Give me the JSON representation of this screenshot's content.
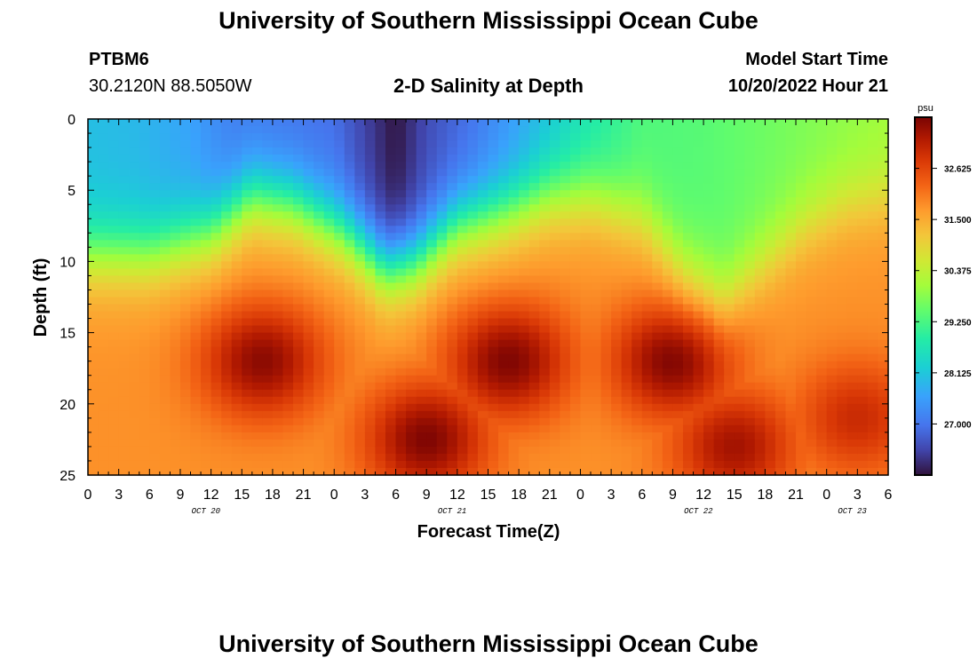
{
  "page": {
    "title": "University of Southern Mississippi Ocean Cube",
    "footer_title": "University of Southern Mississippi Ocean Cube"
  },
  "station": {
    "id": "PTBM6",
    "coords": "30.2120N  88.5050W"
  },
  "plot_title": "2-D Salinity at Depth",
  "model_start": {
    "label": "Model Start Time",
    "value": "10/20/2022 Hour 21"
  },
  "chart_data": {
    "type": "heatmap",
    "title": "2-D Salinity at Depth",
    "xlabel": "Forecast Time(Z)",
    "ylabel": "Depth (ft)",
    "x_tick_labels": [
      "0",
      "3",
      "6",
      "9",
      "12",
      "15",
      "18",
      "21",
      "0",
      "3",
      "6",
      "9",
      "12",
      "15",
      "18",
      "21",
      "0",
      "3",
      "6",
      "9",
      "12",
      "15",
      "18",
      "21",
      "0",
      "3",
      "6"
    ],
    "y_tick_labels": [
      "0",
      "5",
      "10",
      "15",
      "20",
      "25"
    ],
    "ylim": [
      0,
      25
    ],
    "xlim_hours": [
      0,
      78
    ],
    "day_labels": [
      {
        "label": "OCT 20",
        "hour": 11.5
      },
      {
        "label": "OCT 21",
        "hour": 35.5
      },
      {
        "label": "OCT 22",
        "hour": 59.5
      },
      {
        "label": "OCT 23",
        "hour": 74.5
      }
    ],
    "colorbar": {
      "unit": "psu",
      "min": 25.875,
      "max": 33.75,
      "tick_labels": [
        "32.625",
        "31.500",
        "30.375",
        "29.250",
        "28.125",
        "27.000"
      ]
    },
    "surface_salinity_psu": [
      {
        "hour": 0,
        "value": 28.0
      },
      {
        "hour": 5,
        "value": 27.9
      },
      {
        "hour": 10,
        "value": 27.6
      },
      {
        "hour": 14,
        "value": 27.1
      },
      {
        "hour": 18,
        "value": 27.0
      },
      {
        "hour": 24,
        "value": 26.9
      },
      {
        "hour": 27,
        "value": 26.4
      },
      {
        "hour": 30,
        "value": 25.9
      },
      {
        "hour": 33,
        "value": 26.5
      },
      {
        "hour": 37,
        "value": 26.9
      },
      {
        "hour": 42,
        "value": 27.6
      },
      {
        "hour": 48,
        "value": 28.6
      },
      {
        "hour": 54,
        "value": 29.3
      },
      {
        "hour": 60,
        "value": 29.4
      },
      {
        "hour": 66,
        "value": 29.6
      },
      {
        "hour": 72,
        "value": 29.8
      },
      {
        "hour": 78,
        "value": 30.0
      }
    ],
    "halocline_depth_ft": [
      {
        "hour": 0,
        "value": 9.5
      },
      {
        "hour": 6,
        "value": 9.5
      },
      {
        "hour": 12,
        "value": 8.0
      },
      {
        "hour": 16,
        "value": 5.5
      },
      {
        "hour": 20,
        "value": 6.0
      },
      {
        "hour": 25,
        "value": 8.0
      },
      {
        "hour": 29,
        "value": 10.5
      },
      {
        "hour": 32,
        "value": 10.0
      },
      {
        "hour": 36,
        "value": 7.5
      },
      {
        "hour": 41,
        "value": 6.5
      },
      {
        "hour": 45,
        "value": 5.5
      },
      {
        "hour": 49,
        "value": 5.5
      },
      {
        "hour": 54,
        "value": 7.0
      },
      {
        "hour": 58,
        "value": 10.5
      },
      {
        "hour": 62,
        "value": 12.5
      },
      {
        "hour": 66,
        "value": 10.0
      },
      {
        "hour": 70,
        "value": 7.5
      },
      {
        "hour": 74,
        "value": 6.0
      },
      {
        "hour": 78,
        "value": 5.5
      }
    ],
    "max_salinity_cores": [
      {
        "hour": 17,
        "depth_ft": 17,
        "value": 33.6
      },
      {
        "hour": 33,
        "depth_ft": 22.5,
        "value": 33.7
      },
      {
        "hour": 41,
        "depth_ft": 17,
        "value": 33.7
      },
      {
        "hour": 57,
        "depth_ft": 17,
        "value": 33.7
      },
      {
        "hour": 63,
        "depth_ft": 23,
        "value": 33.4
      },
      {
        "hour": 75,
        "depth_ft": 21,
        "value": 33.0
      }
    ]
  }
}
